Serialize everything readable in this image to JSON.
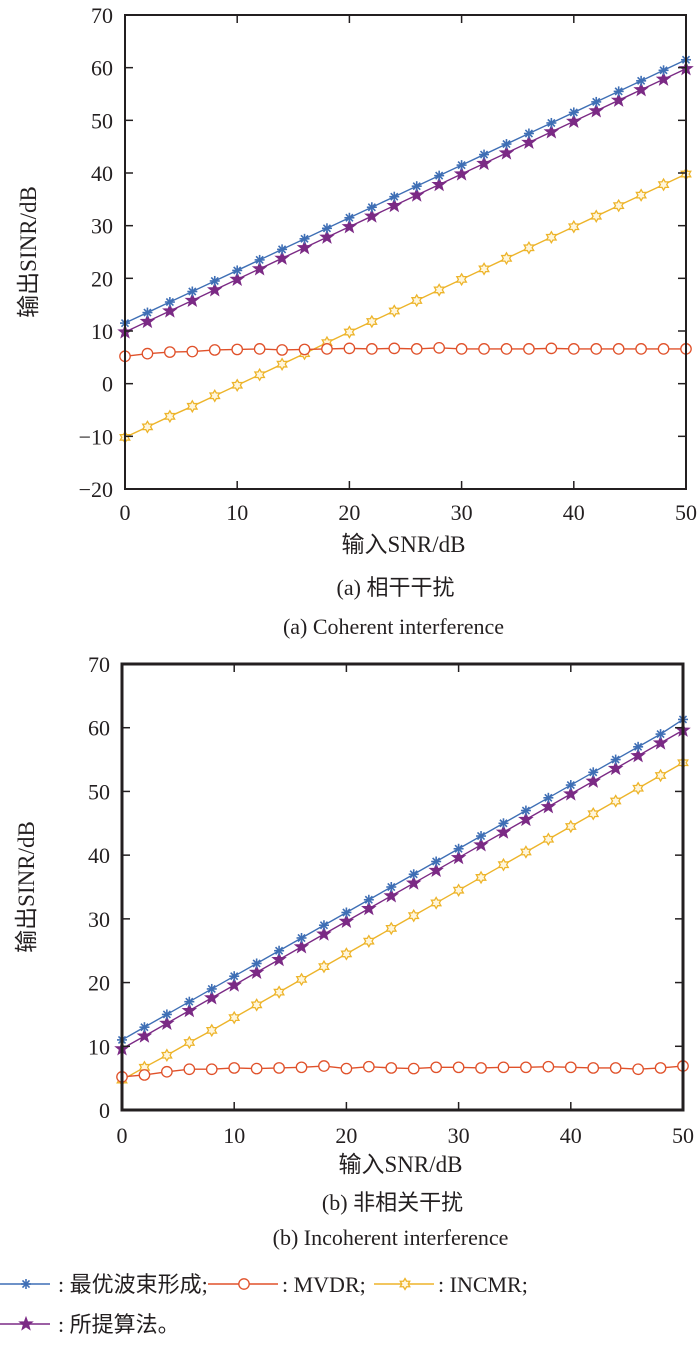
{
  "chart_data": [
    {
      "type": "line",
      "panel": "a",
      "caption_cn": "(a) 相干干扰",
      "caption_en": "(a) Coherent interference",
      "xlabel": "输入SNR/dB",
      "ylabel": "输出SINR/dB",
      "xlim": [
        0,
        50
      ],
      "ylim": [
        -20,
        70
      ],
      "xticks": [
        0,
        10,
        20,
        30,
        40,
        50
      ],
      "yticks": [
        -20,
        -10,
        0,
        10,
        20,
        30,
        40,
        50,
        60,
        70
      ],
      "xtick_labels": [
        "0",
        "10",
        "20",
        "30",
        "40",
        "50"
      ],
      "ytick_labels": [
        "−20",
        "−10",
        "0",
        "10",
        "20",
        "30",
        "40",
        "50",
        "60",
        "70"
      ],
      "grid": false,
      "x": [
        0,
        2,
        4,
        6,
        8,
        10,
        12,
        14,
        16,
        18,
        20,
        22,
        24,
        26,
        28,
        30,
        32,
        34,
        36,
        38,
        40,
        42,
        44,
        46,
        48,
        50
      ],
      "series": [
        {
          "name": "最优波束形成",
          "color": "#3f6fb5",
          "marker": "asterisk",
          "values": [
            11.5,
            13.5,
            15.5,
            17.5,
            19.5,
            21.5,
            23.5,
            25.5,
            27.5,
            29.5,
            31.5,
            33.5,
            35.5,
            37.5,
            39.5,
            41.5,
            43.5,
            45.5,
            47.5,
            49.5,
            51.5,
            53.5,
            55.5,
            57.5,
            59.5,
            61.5
          ]
        },
        {
          "name": "MVDR",
          "color": "#e0512a",
          "marker": "circle",
          "values": [
            5.2,
            5.7,
            6.0,
            6.1,
            6.4,
            6.5,
            6.6,
            6.4,
            6.5,
            6.6,
            6.7,
            6.6,
            6.7,
            6.6,
            6.8,
            6.6,
            6.6,
            6.6,
            6.6,
            6.7,
            6.6,
            6.6,
            6.6,
            6.6,
            6.6,
            6.6
          ]
        },
        {
          "name": "INCMR",
          "color": "#edb42a",
          "marker": "hexagram",
          "values": [
            -10.2,
            -8.2,
            -6.2,
            -4.3,
            -2.3,
            -0.3,
            1.7,
            3.7,
            5.7,
            7.8,
            9.8,
            11.8,
            13.8,
            15.8,
            17.8,
            19.8,
            21.8,
            23.8,
            25.8,
            27.8,
            29.8,
            31.8,
            33.8,
            35.8,
            37.8,
            39.8
          ]
        },
        {
          "name": "所提算法",
          "color": "#7b2a85",
          "marker": "pentagram",
          "values": [
            9.8,
            11.8,
            13.8,
            15.8,
            17.8,
            19.8,
            21.8,
            23.8,
            25.8,
            27.8,
            29.8,
            31.8,
            33.8,
            35.8,
            37.8,
            39.8,
            41.8,
            43.8,
            45.8,
            47.8,
            49.8,
            51.8,
            53.8,
            55.8,
            57.8,
            59.8
          ]
        }
      ]
    },
    {
      "type": "line",
      "panel": "b",
      "caption_cn": "(b) 非相关干扰",
      "caption_en": "(b) Incoherent interference",
      "xlabel": "输入SNR/dB",
      "ylabel": "输出SINR/dB",
      "xlim": [
        0,
        50
      ],
      "ylim": [
        0,
        70
      ],
      "xticks": [
        0,
        10,
        20,
        30,
        40,
        50
      ],
      "yticks": [
        0,
        10,
        20,
        30,
        40,
        50,
        60,
        70
      ],
      "xtick_labels": [
        "0",
        "10",
        "20",
        "30",
        "40",
        "50"
      ],
      "ytick_labels": [
        "0",
        "10",
        "20",
        "30",
        "40",
        "50",
        "60",
        "70"
      ],
      "grid": false,
      "x": [
        0,
        2,
        4,
        6,
        8,
        10,
        12,
        14,
        16,
        18,
        20,
        22,
        24,
        26,
        28,
        30,
        32,
        34,
        36,
        38,
        40,
        42,
        44,
        46,
        48,
        50
      ],
      "series": [
        {
          "name": "最优波束形成",
          "color": "#3f6fb5",
          "marker": "asterisk",
          "values": [
            11.0,
            13.0,
            15.0,
            17.0,
            19.0,
            21.0,
            23.0,
            25.0,
            27.0,
            29.0,
            31.0,
            33.0,
            35.0,
            37.0,
            39.0,
            41.0,
            43.0,
            45.0,
            47.0,
            49.0,
            51.0,
            53.0,
            55.0,
            57.0,
            59.0,
            61.3
          ]
        },
        {
          "name": "MVDR",
          "color": "#e0512a",
          "marker": "circle",
          "values": [
            5.2,
            5.5,
            6.0,
            6.4,
            6.4,
            6.6,
            6.5,
            6.6,
            6.7,
            6.9,
            6.5,
            6.8,
            6.6,
            6.5,
            6.7,
            6.7,
            6.6,
            6.7,
            6.7,
            6.8,
            6.7,
            6.6,
            6.6,
            6.4,
            6.6,
            6.9
          ]
        },
        {
          "name": "INCMR",
          "color": "#edb42a",
          "marker": "hexagram",
          "values": [
            4.7,
            6.7,
            8.6,
            10.6,
            12.5,
            14.5,
            16.5,
            18.5,
            20.5,
            22.5,
            24.5,
            26.5,
            28.5,
            30.5,
            32.5,
            34.5,
            36.5,
            38.5,
            40.5,
            42.5,
            44.5,
            46.5,
            48.5,
            50.5,
            52.5,
            54.5
          ]
        },
        {
          "name": "所提算法",
          "color": "#7b2a85",
          "marker": "pentagram",
          "values": [
            9.6,
            11.6,
            13.6,
            15.6,
            17.6,
            19.6,
            21.6,
            23.6,
            25.6,
            27.6,
            29.6,
            31.6,
            33.6,
            35.6,
            37.6,
            39.6,
            41.6,
            43.6,
            45.6,
            47.6,
            49.6,
            51.6,
            53.6,
            55.6,
            57.6,
            59.6
          ]
        }
      ]
    }
  ],
  "legend": {
    "items": [
      {
        "label": ": 最优波束形成;",
        "color": "#3f6fb5",
        "marker": "asterisk"
      },
      {
        "label": ": MVDR;",
        "color": "#e0512a",
        "marker": "circle"
      },
      {
        "label": ": INCMR;",
        "color": "#edb42a",
        "marker": "hexagram"
      },
      {
        "label": ": 所提算法。",
        "color": "#7b2a85",
        "marker": "pentagram"
      }
    ]
  }
}
